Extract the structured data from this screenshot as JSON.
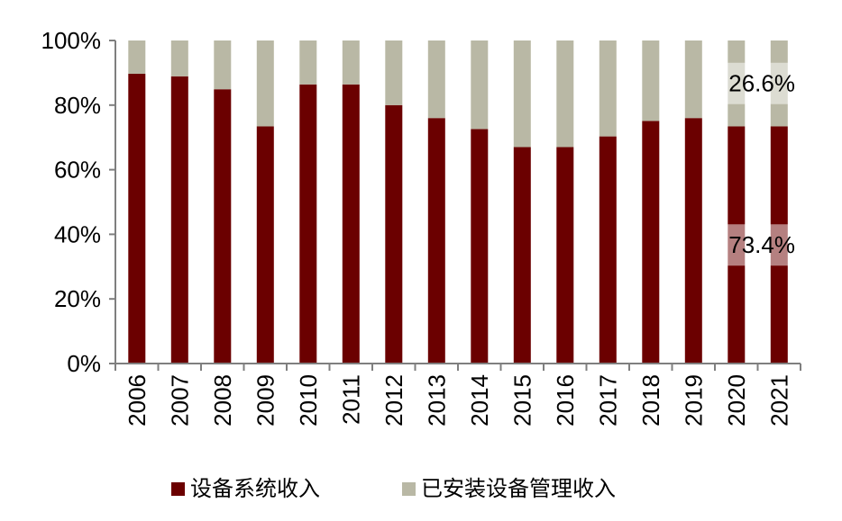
{
  "chart_data": {
    "type": "bar",
    "stacked": true,
    "categories": [
      "2006",
      "2007",
      "2008",
      "2009",
      "2010",
      "2011",
      "2012",
      "2013",
      "2014",
      "2015",
      "2016",
      "2017",
      "2018",
      "2019",
      "2020",
      "2021"
    ],
    "series": [
      {
        "name": "设备系统收入",
        "color": "#6b0000",
        "values": [
          89.7,
          88.9,
          84.9,
          73.4,
          86.4,
          86.4,
          80.0,
          76.0,
          72.6,
          67.0,
          67.0,
          70.3,
          75.1,
          76.0,
          73.4,
          73.4
        ]
      },
      {
        "name": "已安装设备管理收入",
        "color": "#b9b8a5",
        "values": [
          10.3,
          11.1,
          15.1,
          26.6,
          13.6,
          13.6,
          20.0,
          24.0,
          27.4,
          33.0,
          33.0,
          29.7,
          24.9,
          24.0,
          26.6,
          26.6
        ]
      }
    ],
    "y_ticks": [
      "0%",
      "20%",
      "40%",
      "60%",
      "80%",
      "100%"
    ],
    "ylim": [
      0,
      100
    ],
    "data_labels": [
      {
        "category": "2021",
        "series": "已安装设备管理收入",
        "text": "26.6%"
      },
      {
        "category": "2021",
        "series": "设备系统收入",
        "text": "73.4%"
      }
    ],
    "legend_position": "bottom",
    "grid": false
  }
}
